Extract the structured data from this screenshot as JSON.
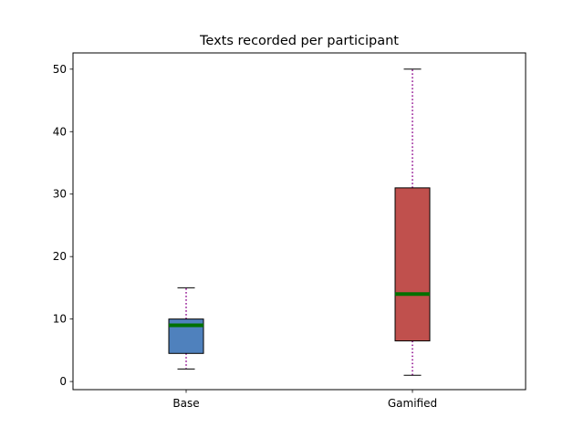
{
  "chart_data": {
    "type": "box",
    "title": "Texts recorded per participant",
    "xlabel": "",
    "ylabel": "",
    "ylim": [
      -1.3,
      52.6
    ],
    "yticks": [
      0,
      10,
      20,
      30,
      40,
      50
    ],
    "categories": [
      "Base",
      "Gamified"
    ],
    "boxes": [
      {
        "label": "Base",
        "whisker_low": 2,
        "q1": 4.5,
        "median": 9,
        "q3": 10,
        "whisker_high": 15,
        "color": "#4f81bd"
      },
      {
        "label": "Gamified",
        "whisker_low": 1,
        "q1": 6.5,
        "median": 14,
        "q3": 31,
        "whisker_high": 50,
        "color": "#c0504d"
      }
    ],
    "median_color": "#007000",
    "whisker_color": "#8b008b",
    "grid": false
  }
}
